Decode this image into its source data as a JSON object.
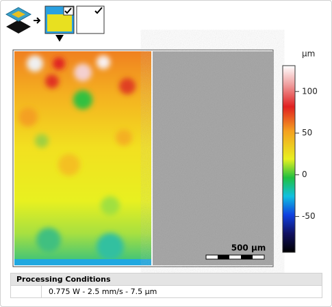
{
  "colorbar": {
    "unit": "µm",
    "lim": [
      -93,
      131
    ],
    "ticks": [
      100,
      50,
      0,
      -50
    ]
  },
  "scale_bar": {
    "label": "500 µm"
  },
  "table": {
    "header": "Processing Conditions",
    "rows": [
      [
        "0.775 W - 2.5 mm/s - 7.5 µm"
      ]
    ]
  }
}
